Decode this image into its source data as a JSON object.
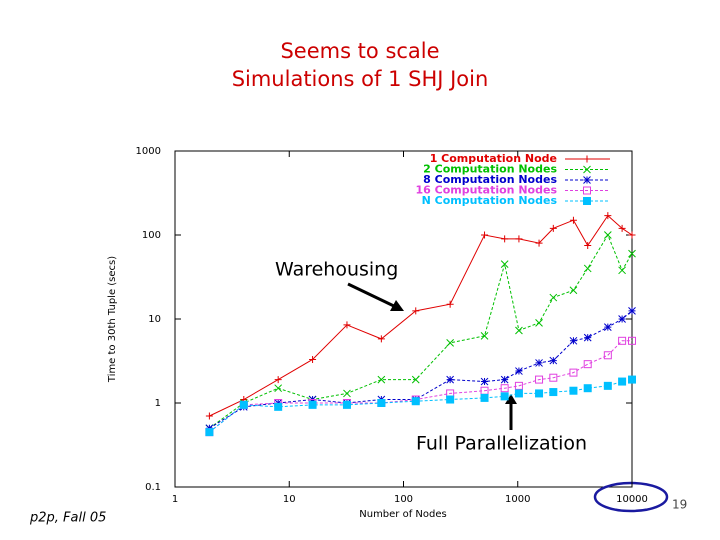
{
  "chart_data": {
    "type": "line",
    "title": "Seems to scale",
    "subtitle": "Simulations of 1 SHJ Join",
    "x_label": "Number of Nodes",
    "y_label": "Time to 30th Tuple (secs)",
    "log_x": true,
    "log_y": true,
    "xlim": [
      1,
      10000
    ],
    "ylim": [
      0.1,
      1000
    ],
    "xticks": [
      1,
      10,
      100,
      1000,
      10000
    ],
    "yticks": [
      1000,
      100,
      10,
      1,
      0.1
    ],
    "legend": "upper right",
    "x": [
      2,
      4,
      8,
      16,
      32,
      64,
      128,
      256,
      512,
      768,
      1024,
      1536,
      2048,
      3072,
      4096,
      6144,
      8192,
      10000
    ],
    "series": [
      {
        "name": "1 Computation Node",
        "color": "#e00000",
        "marker": "plus",
        "values": [
          0.7,
          1.1,
          1.9,
          3.3,
          8.5,
          5.8,
          12.5,
          15,
          100,
          90,
          90,
          80,
          120,
          150,
          75,
          170,
          120,
          100
        ]
      },
      {
        "name": "2 Computation Nodes",
        "color": "#00c000",
        "marker": "cross",
        "values": [
          0.5,
          1.0,
          1.5,
          1.1,
          1.3,
          1.9,
          1.9,
          5.2,
          6.3,
          45,
          7.3,
          9,
          18,
          22,
          40,
          100,
          38,
          60
        ]
      },
      {
        "name": "8 Computation Nodes",
        "color": "#0000cc",
        "marker": "star",
        "values": [
          0.5,
          0.9,
          1.0,
          1.1,
          1.0,
          1.1,
          1.1,
          1.9,
          1.8,
          1.9,
          2.4,
          3,
          3.2,
          5.5,
          6,
          8,
          10,
          12.5
        ]
      },
      {
        "name": "16 Computation Nodes",
        "color": "#e040e0",
        "marker": "square",
        "values": [
          0.45,
          0.95,
          1.0,
          1.0,
          1.0,
          1.0,
          1.1,
          1.3,
          1.4,
          1.5,
          1.6,
          1.9,
          2,
          2.3,
          2.9,
          3.7,
          5.5,
          5.5
        ]
      },
      {
        "name": "N Computation Nodes",
        "color": "#00c0ff",
        "marker": "filled-square",
        "values": [
          0.45,
          0.95,
          0.9,
          0.95,
          0.95,
          1.0,
          1.05,
          1.1,
          1.15,
          1.2,
          1.3,
          1.3,
          1.35,
          1.4,
          1.5,
          1.6,
          1.8,
          1.9
        ]
      }
    ],
    "annotations": [
      "Warehousing",
      "Full Parallelization"
    ]
  },
  "footer": {
    "left": "p2p, Fall 05",
    "page": "19"
  }
}
